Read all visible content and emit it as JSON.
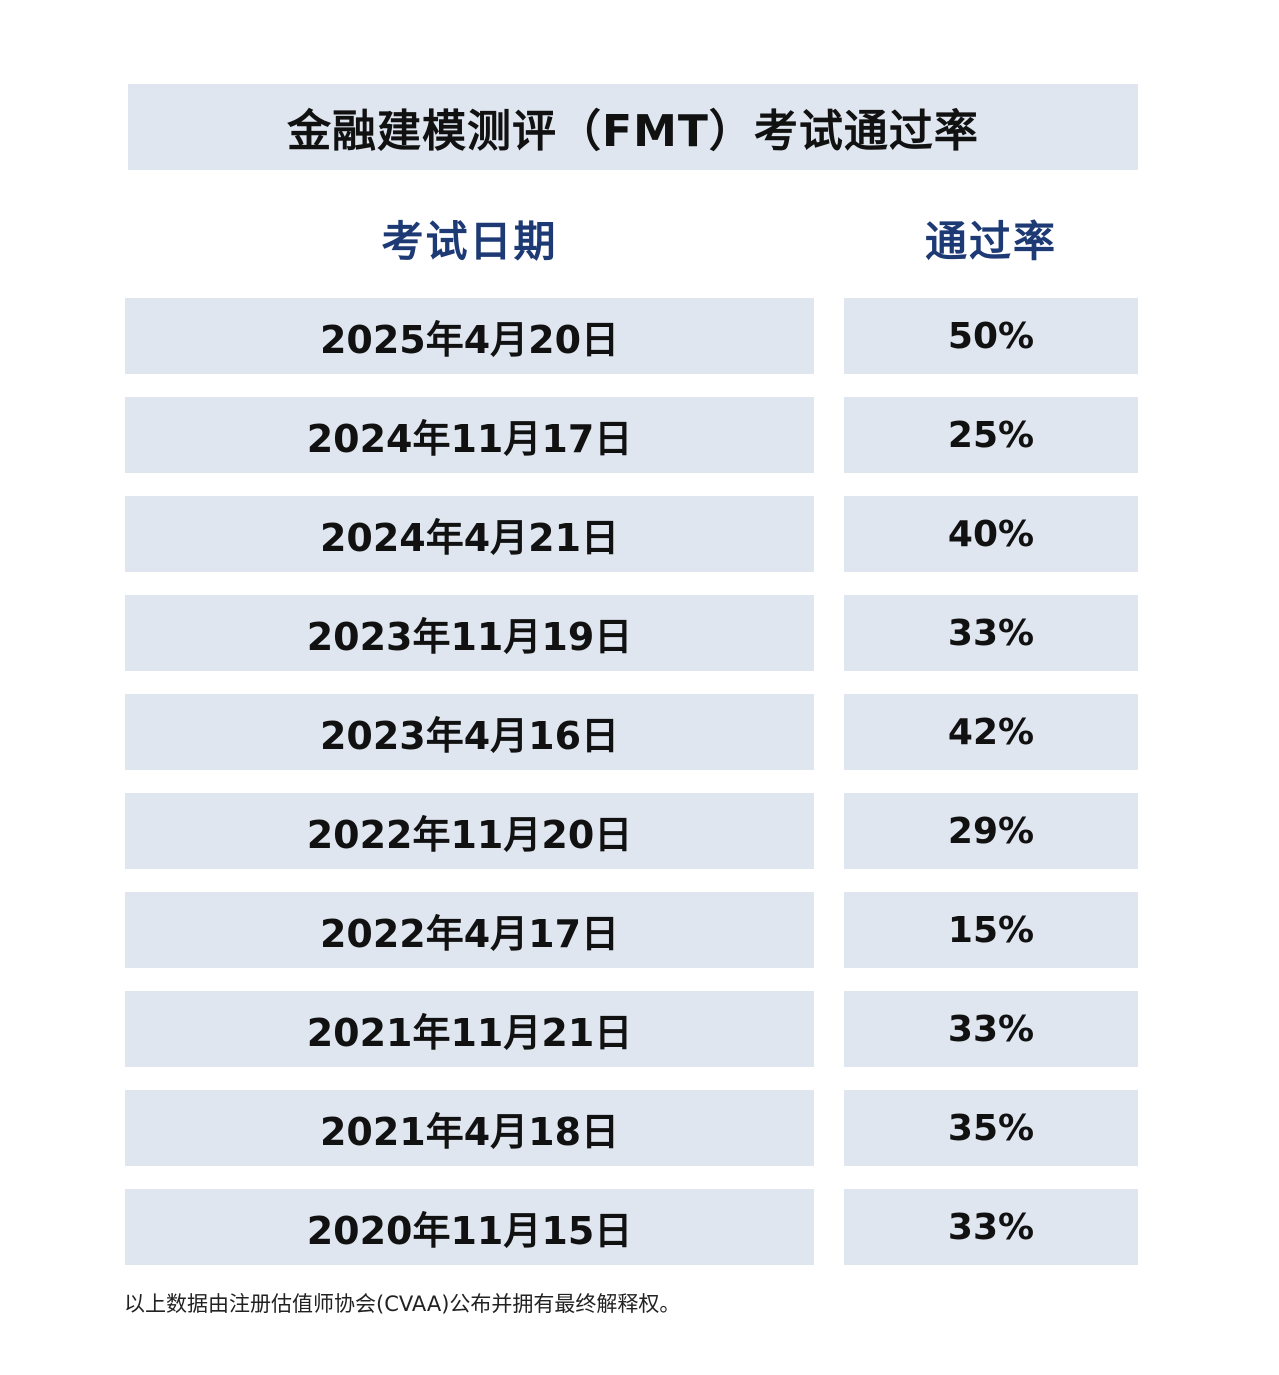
{
  "title": "金融建模测评（FMT）考试通过率",
  "headers": {
    "date": "考试日期",
    "rate": "通过率"
  },
  "rows": [
    {
      "date": "2025年4月20日",
      "rate": "50%"
    },
    {
      "date": "2024年11月17日",
      "rate": "25%"
    },
    {
      "date": "2024年4月21日",
      "rate": "40%"
    },
    {
      "date": "2023年11月19日",
      "rate": "33%"
    },
    {
      "date": "2023年4月16日",
      "rate": "42%"
    },
    {
      "date": "2022年11月20日",
      "rate": "29%"
    },
    {
      "date": "2022年4月17日",
      "rate": "15%"
    },
    {
      "date": "2021年11月21日",
      "rate": "33%"
    },
    {
      "date": "2021年4月18日",
      "rate": "35%"
    },
    {
      "date": "2020年11月15日",
      "rate": "33%"
    }
  ],
  "footnote": "以上数据由注册估值师协会(CVAA)公布并拥有最终解释权。",
  "colors": {
    "cell_background": "#dfe6f0",
    "header_text": "#1d3a75",
    "body_text": "#111111"
  }
}
